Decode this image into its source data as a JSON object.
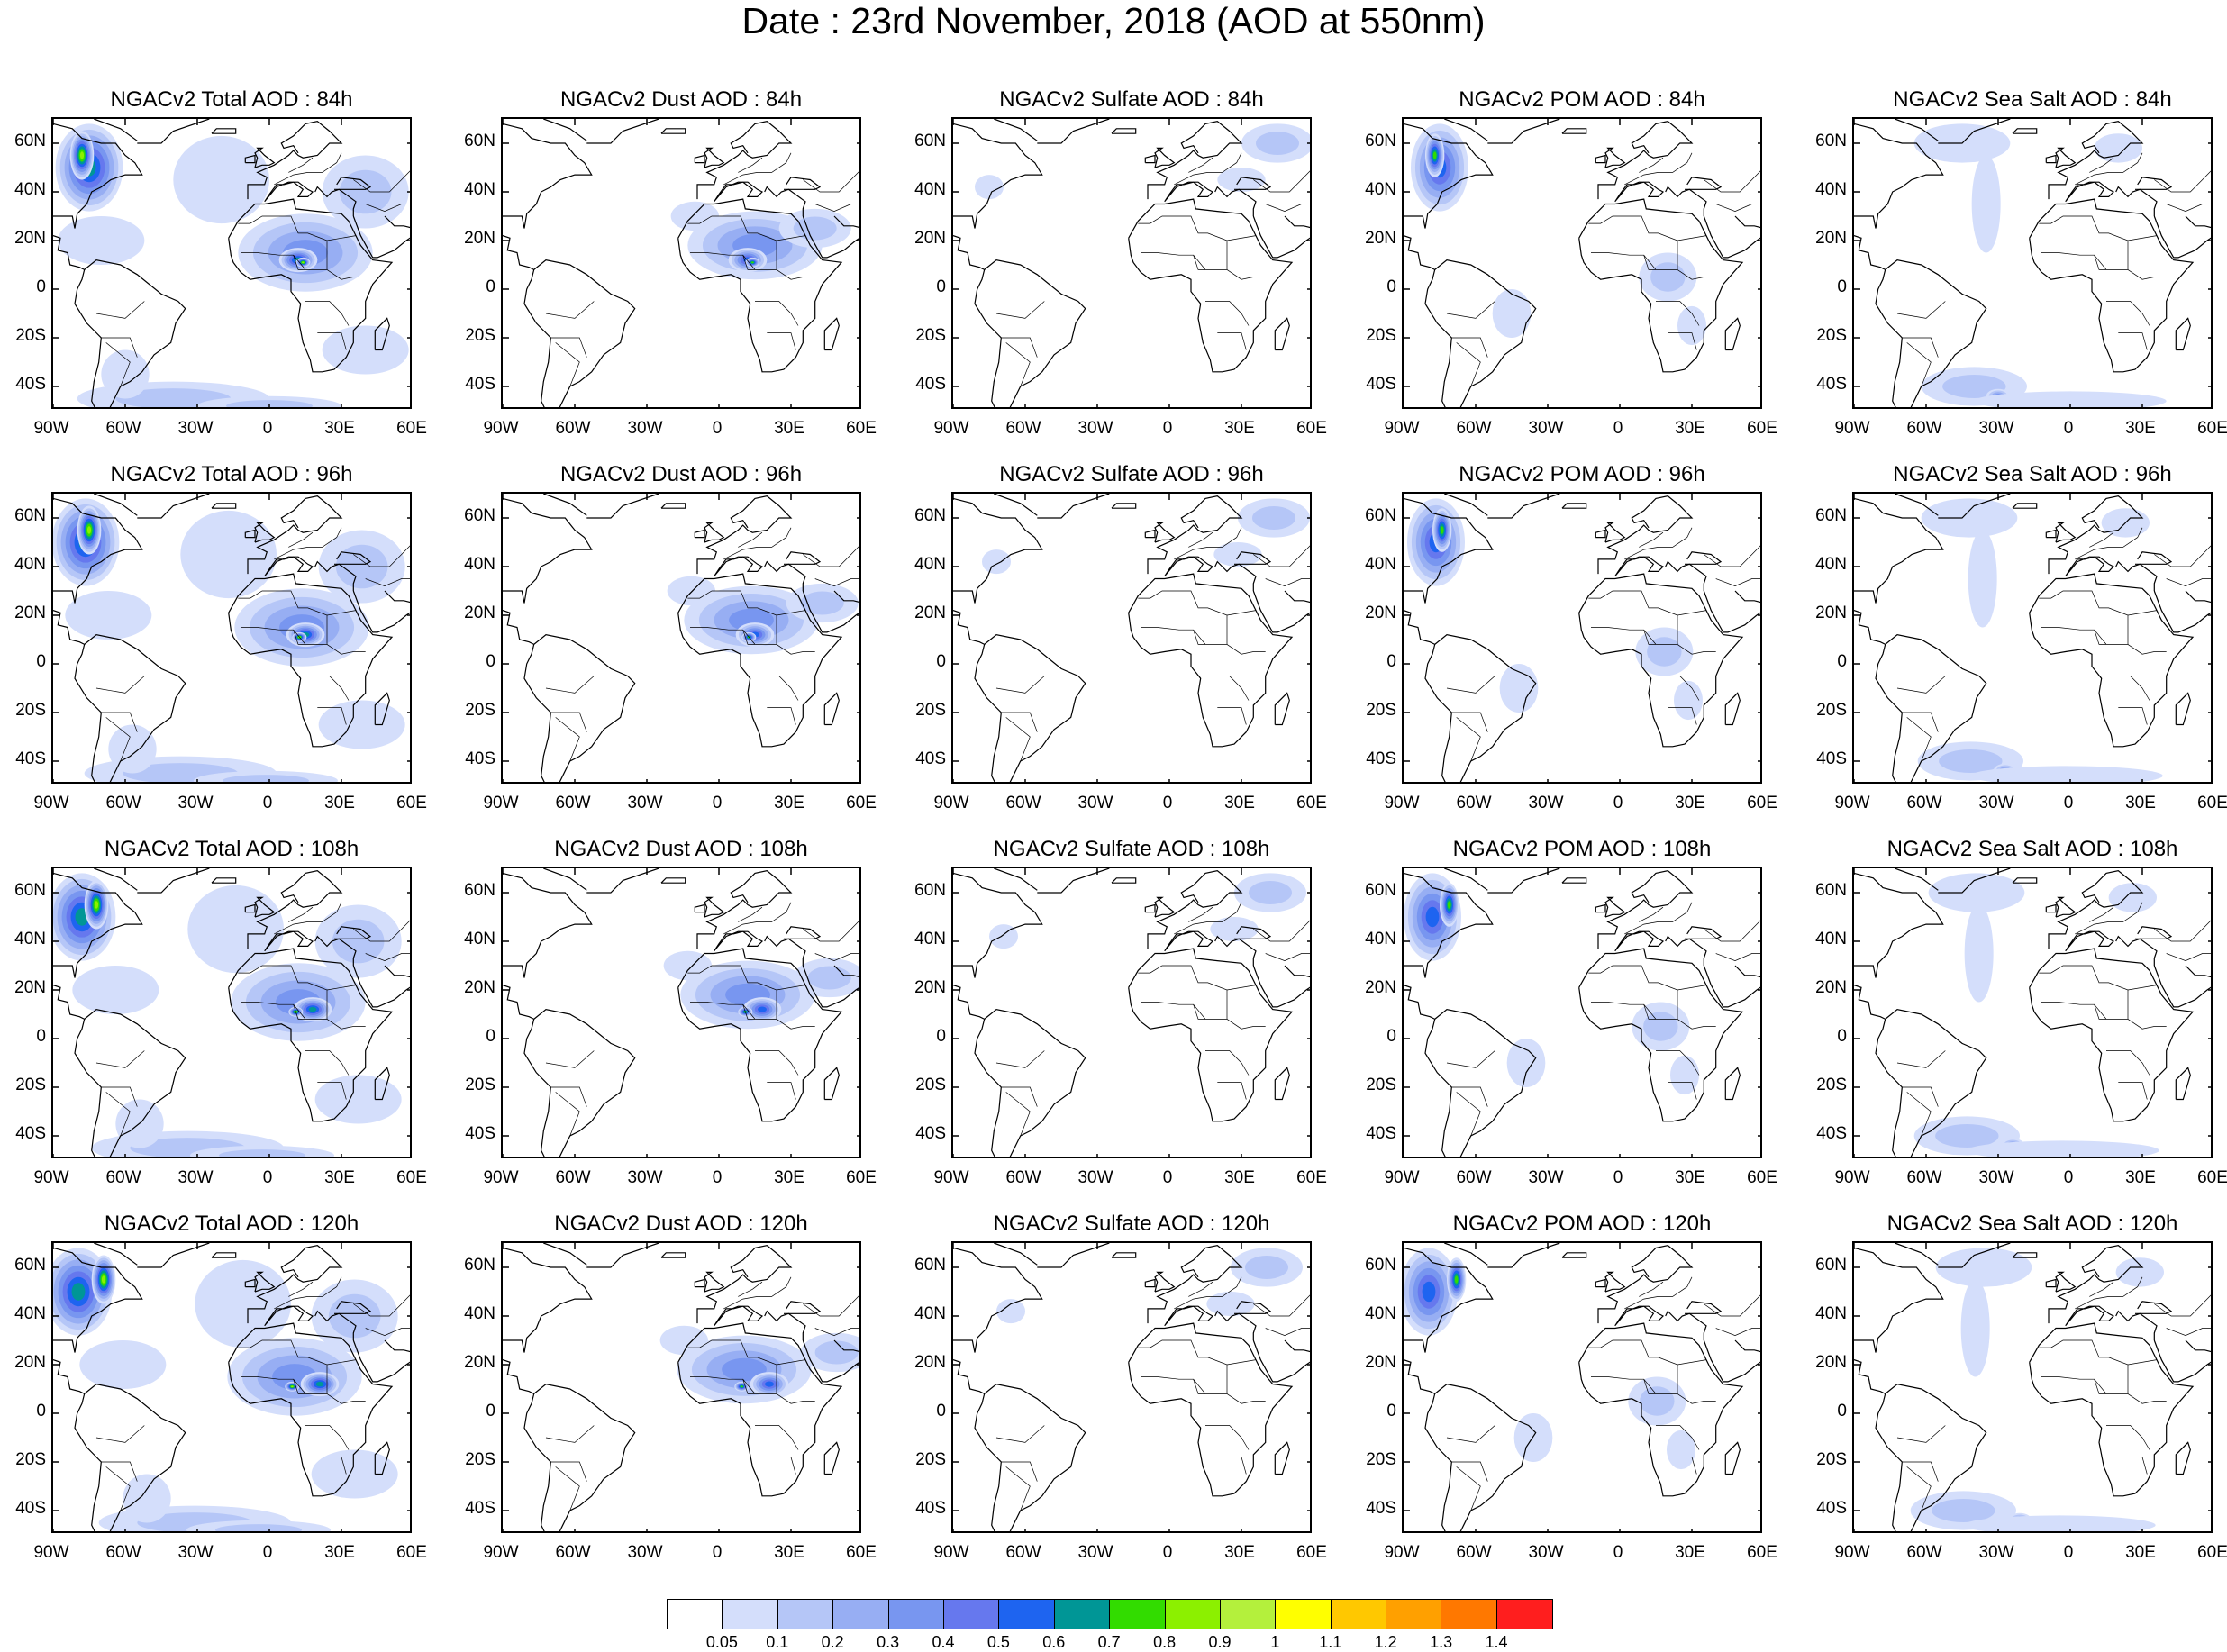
{
  "title": "Date : 23rd November, 2018 (AOD at 550nm)",
  "species": [
    {
      "key": "total",
      "color": "#7896f0"
    },
    {
      "key": "dust",
      "color": "#7896f0"
    },
    {
      "key": "sulfate",
      "color": "#7896f0"
    },
    {
      "key": "pom",
      "color": "#7896f0"
    },
    {
      "key": "seasalt",
      "color": "#7896f0"
    }
  ],
  "panels": [
    [
      "NGACv2 Total AOD : 84h",
      "NGACv2 Dust AOD : 84h",
      "NGACv2 Sulfate AOD : 84h",
      "NGACv2 POM AOD : 84h",
      "NGACv2 Sea Salt AOD : 84h"
    ],
    [
      "NGACv2 Total AOD : 96h",
      "NGACv2 Dust AOD : 96h",
      "NGACv2 Sulfate AOD : 96h",
      "NGACv2 POM AOD : 96h",
      "NGACv2 Sea Salt AOD : 96h"
    ],
    [
      "NGACv2 Total AOD : 108h",
      "NGACv2 Dust AOD : 108h",
      "NGACv2 Sulfate AOD : 108h",
      "NGACv2 POM AOD : 108h",
      "NGACv2 Sea Salt AOD : 108h"
    ],
    [
      "NGACv2 Total AOD : 120h",
      "NGACv2 Dust AOD : 120h",
      "NGACv2 Sulfate AOD : 120h",
      "NGACv2 POM AOD : 120h",
      "NGACv2 Sea Salt  AOD : 120h"
    ]
  ],
  "lat_ticks": [
    "60N",
    "40N",
    "20N",
    "0",
    "20S",
    "40S"
  ],
  "lon_ticks": [
    "90W",
    "60W",
    "30W",
    "0",
    "30E",
    "60E"
  ],
  "map_extent": {
    "lon": [
      -90,
      60
    ],
    "lat": [
      -50,
      70
    ]
  },
  "colorbar": {
    "labels": [
      "0.05",
      "0.1",
      "0.2",
      "0.3",
      "0.4",
      "0.5",
      "0.6",
      "0.7",
      "0.8",
      "0.9",
      "1",
      "1.1",
      "1.2",
      "1.3",
      "1.4"
    ],
    "colors": [
      "#ffffff",
      "#d4defb",
      "#b5c6f7",
      "#97aef3",
      "#7896f0",
      "#6678ee",
      "#1e64f0",
      "#009696",
      "#32dc00",
      "#8cf000",
      "#b4f03c",
      "#ffff00",
      "#ffc800",
      "#ffa000",
      "#ff7800",
      "#ff1e1e"
    ]
  }
}
